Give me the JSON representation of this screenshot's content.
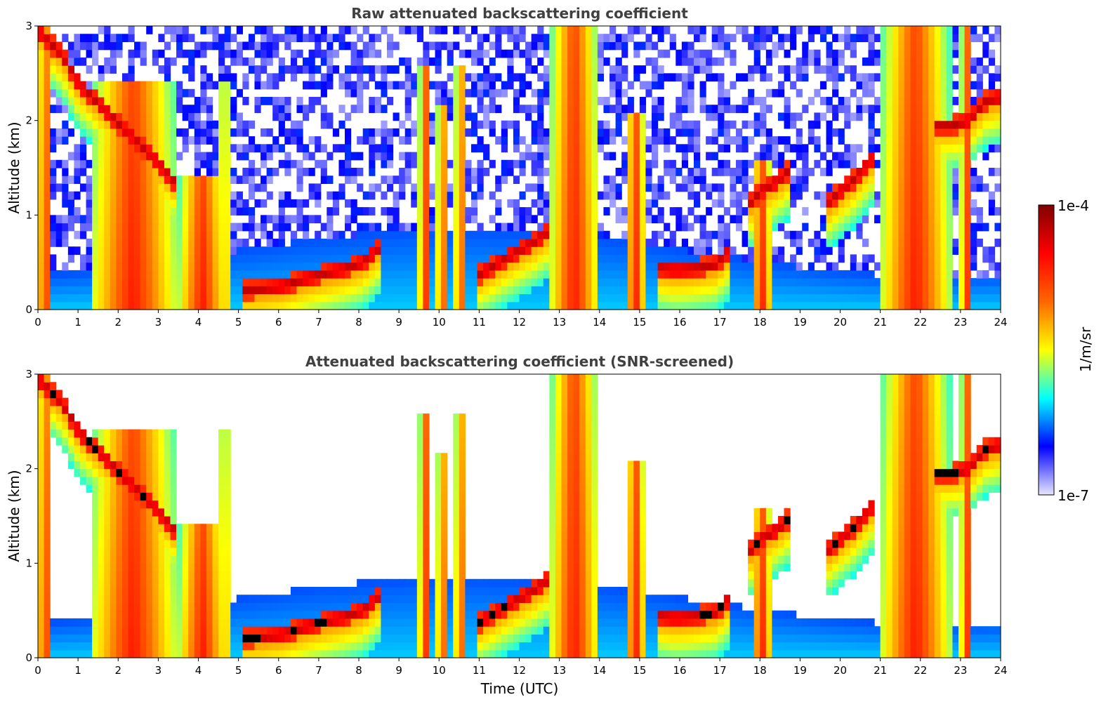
{
  "chart_data": [
    {
      "type": "heatmap",
      "title": "Raw attenuated backscattering coefficient",
      "xlabel": "",
      "ylabel": "Altitude (km)",
      "xlim": [
        0,
        24
      ],
      "ylim": [
        0,
        3
      ],
      "xticks": [
        "0",
        "1",
        "2",
        "3",
        "4",
        "5",
        "6",
        "7",
        "8",
        "9",
        "10",
        "11",
        "12",
        "13",
        "14",
        "15",
        "16",
        "17",
        "18",
        "19",
        "20",
        "21",
        "22",
        "23",
        "24"
      ],
      "yticks": [
        "0",
        "1",
        "2",
        "3"
      ],
      "screened": false
    },
    {
      "type": "heatmap",
      "title": "Attenuated backscattering coefficient (SNR-screened)",
      "xlabel": "Time (UTC)",
      "ylabel": "Altitude (km)",
      "xlim": [
        0,
        24
      ],
      "ylim": [
        0,
        3
      ],
      "xticks": [
        "0",
        "1",
        "2",
        "3",
        "4",
        "5",
        "6",
        "7",
        "8",
        "9",
        "10",
        "11",
        "12",
        "13",
        "14",
        "15",
        "16",
        "17",
        "18",
        "19",
        "20",
        "21",
        "22",
        "23",
        "24"
      ],
      "yticks": [
        "0",
        "1",
        "2",
        "3"
      ],
      "screened": true
    }
  ],
  "colorbar": {
    "label": "1/m/sr",
    "max_label": "1e-4",
    "min_label": "1e-7",
    "colormap": [
      "#e6e6ff",
      "#0000ff",
      "#00ffff",
      "#ffff00",
      "#ff6600",
      "#ff0000",
      "#800000"
    ]
  },
  "cloud_tracks": [
    {
      "t": [
        0.0,
        0.6,
        1.0,
        1.7,
        2.3,
        2.9,
        3.4
      ],
      "h": [
        2.95,
        2.7,
        2.4,
        2.1,
        1.85,
        1.6,
        1.35
      ]
    },
    {
      "t": [
        5.1,
        5.6,
        6.1,
        6.6,
        7.1,
        7.6,
        8.1,
        8.5
      ],
      "h": [
        0.21,
        0.22,
        0.25,
        0.32,
        0.38,
        0.43,
        0.5,
        0.65
      ]
    },
    {
      "t": [
        10.9,
        11.3,
        11.8,
        12.3,
        12.8
      ],
      "h": [
        0.35,
        0.45,
        0.58,
        0.7,
        0.85
      ]
    },
    {
      "t": [
        15.4,
        15.9,
        16.4,
        16.9,
        17.3
      ],
      "h": [
        0.45,
        0.42,
        0.44,
        0.48,
        0.65
      ]
    },
    {
      "t": [
        17.7,
        18.0,
        18.4,
        18.8
      ],
      "h": [
        1.1,
        1.25,
        1.35,
        1.5
      ]
    },
    {
      "t": [
        19.6,
        20.0,
        20.4,
        20.8
      ],
      "h": [
        1.1,
        1.25,
        1.4,
        1.6
      ]
    },
    {
      "t": [
        22.3,
        22.8,
        23.2,
        23.6,
        24.0
      ],
      "h": [
        1.95,
        1.95,
        2.0,
        2.2,
        2.25
      ]
    }
  ],
  "columns": [
    {
      "t0": 0.0,
      "t1": 0.35,
      "top": 3.0
    },
    {
      "t0": 1.3,
      "t1": 3.45,
      "top": 2.45
    },
    {
      "t0": 3.5,
      "t1": 4.7,
      "top": 1.45
    },
    {
      "t0": 4.55,
      "t1": 4.75,
      "top": 2.4
    },
    {
      "t0": 9.5,
      "t1": 9.8,
      "top": 2.6
    },
    {
      "t0": 9.95,
      "t1": 10.2,
      "top": 2.2
    },
    {
      "t0": 10.4,
      "t1": 10.65,
      "top": 2.6
    },
    {
      "t0": 12.75,
      "t1": 14.0,
      "top": 3.0
    },
    {
      "t0": 14.65,
      "t1": 15.15,
      "top": 2.1
    },
    {
      "t0": 17.8,
      "t1": 18.3,
      "top": 1.6
    },
    {
      "t0": 21.0,
      "t1": 22.75,
      "top": 3.0
    },
    {
      "t0": 23.0,
      "t1": 23.3,
      "top": 3.0
    }
  ]
}
